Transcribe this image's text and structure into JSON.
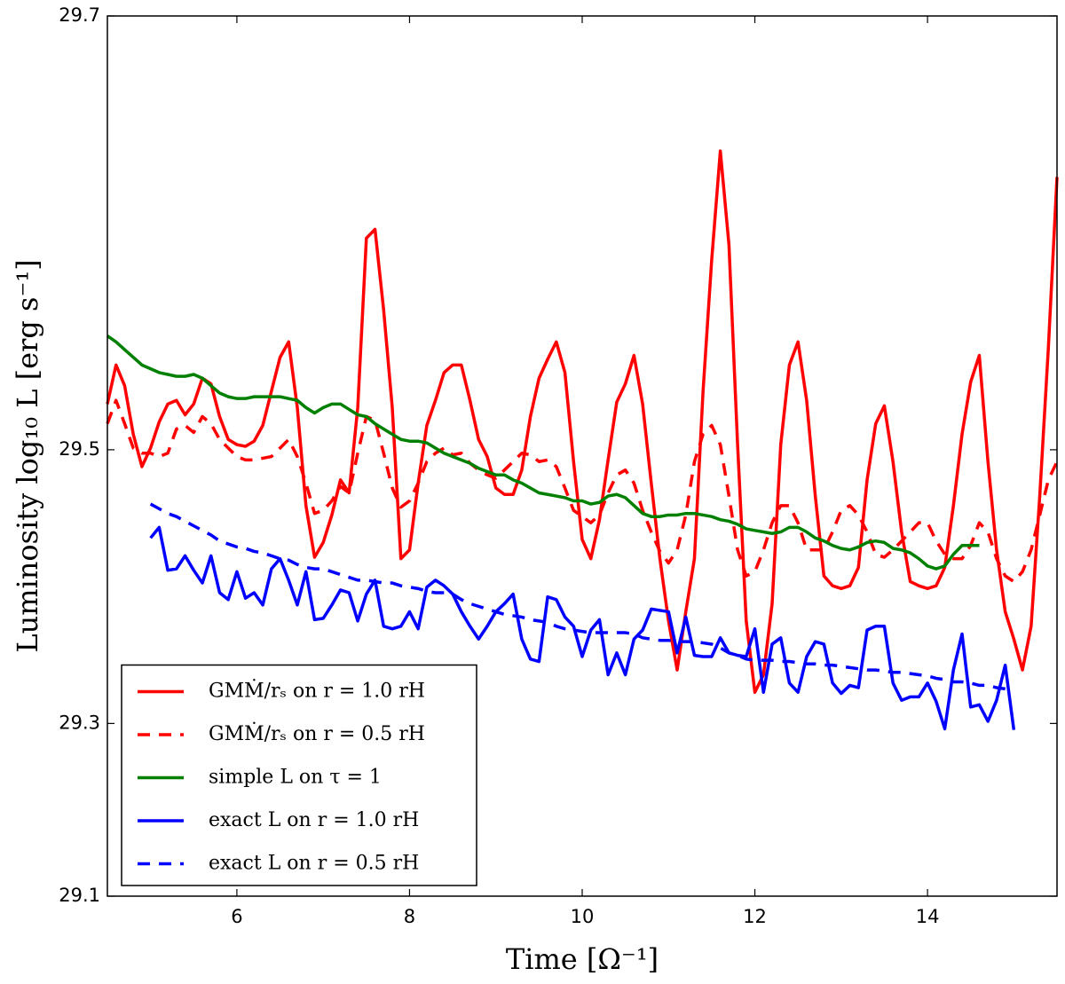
{
  "chart_data": {
    "type": "line",
    "xlabel": "Time [Ω⁻¹]",
    "ylabel": "Luminosity log₁₀ L [erg s⁻¹]",
    "xlim": [
      4.5,
      15.5
    ],
    "ylim": [
      29.1,
      29.7
    ],
    "xticks": [
      6,
      8,
      10,
      12,
      14
    ],
    "yticks": [
      29.1,
      29.3,
      29.5,
      29.7
    ],
    "yscale": "pow10",
    "grid": false,
    "legend": "lower left",
    "x": [
      4.5,
      4.6,
      4.7,
      4.8,
      4.9,
      5.0,
      5.1,
      5.2,
      5.3,
      5.4,
      5.5,
      5.6,
      5.7,
      5.8,
      5.9,
      6.0,
      6.1,
      6.2,
      6.3,
      6.4,
      6.5,
      6.6,
      6.7,
      6.8,
      6.9,
      7.0,
      7.1,
      7.2,
      7.3,
      7.4,
      7.5,
      7.6,
      7.7,
      7.8,
      7.9,
      8.0,
      8.1,
      8.2,
      8.3,
      8.4,
      8.5,
      8.6,
      8.7,
      8.8,
      8.9,
      9.0,
      9.1,
      9.2,
      9.3,
      9.4,
      9.5,
      9.6,
      9.7,
      9.8,
      9.9,
      10.0,
      10.1,
      10.2,
      10.3,
      10.4,
      10.5,
      10.6,
      10.7,
      10.8,
      10.9,
      11.0,
      11.1,
      11.2,
      11.3,
      11.4,
      11.5,
      11.6,
      11.7,
      11.8,
      11.9,
      12.0,
      12.1,
      12.2,
      12.3,
      12.4,
      12.5,
      12.6,
      12.7,
      12.8,
      12.9,
      13.0,
      13.1,
      13.2,
      13.3,
      13.4,
      13.5,
      13.6,
      13.7,
      13.8,
      13.9,
      14.0,
      14.1,
      14.2,
      14.3,
      14.4,
      14.5,
      14.6,
      14.7,
      14.8,
      14.9,
      15.0,
      15.1,
      15.2,
      15.3,
      15.4,
      15.5
    ],
    "series": [
      {
        "name": "GMṀ/rₛ on r = 1.0 rH",
        "color": "#ff0000",
        "linestyle": "solid",
        "values": [
          29.526,
          29.547,
          29.536,
          29.509,
          29.49,
          29.501,
          29.516,
          29.526,
          29.528,
          29.52,
          29.526,
          29.54,
          29.537,
          29.519,
          29.506,
          29.503,
          29.502,
          29.505,
          29.514,
          29.533,
          29.551,
          29.559,
          29.524,
          29.466,
          29.432,
          29.442,
          29.46,
          29.482,
          29.474,
          29.524,
          29.609,
          29.613,
          29.575,
          29.524,
          29.431,
          29.437,
          29.48,
          29.514,
          29.528,
          29.543,
          29.547,
          29.547,
          29.528,
          29.506,
          29.496,
          29.477,
          29.473,
          29.473,
          29.488,
          29.519,
          29.54,
          29.55,
          29.559,
          29.543,
          29.493,
          29.444,
          29.431,
          29.457,
          29.494,
          29.527,
          29.537,
          29.552,
          29.526,
          29.48,
          29.431,
          29.386,
          29.347,
          29.393,
          29.431,
          29.533,
          29.599,
          29.647,
          29.606,
          29.503,
          29.386,
          29.328,
          29.343,
          29.399,
          29.503,
          29.547,
          29.559,
          29.528,
          29.472,
          29.419,
          29.412,
          29.41,
          29.412,
          29.425,
          29.482,
          29.515,
          29.525,
          29.493,
          29.449,
          29.415,
          29.412,
          29.41,
          29.412,
          29.425,
          29.466,
          29.509,
          29.538,
          29.552,
          29.493,
          29.437,
          29.393,
          29.372,
          29.347,
          29.382,
          29.472,
          29.556,
          29.636
        ]
      },
      {
        "name": "GMṀ/rₛ on r = 0.5 rH",
        "color": "#ff0000",
        "linestyle": "dashed",
        "values": [
          29.515,
          29.528,
          29.515,
          29.501,
          29.498,
          29.498,
          29.496,
          29.498,
          29.512,
          29.514,
          29.51,
          29.519,
          29.515,
          29.506,
          29.501,
          29.496,
          29.494,
          29.494,
          29.495,
          29.496,
          29.501,
          29.506,
          29.496,
          29.48,
          29.461,
          29.463,
          29.469,
          29.478,
          29.474,
          29.498,
          29.519,
          29.517,
          29.498,
          29.477,
          29.465,
          29.469,
          29.48,
          29.493,
          29.498,
          29.501,
          29.497,
          29.498,
          29.492,
          29.488,
          29.485,
          29.483,
          29.488,
          29.493,
          29.498,
          29.497,
          29.493,
          29.494,
          29.49,
          29.477,
          29.463,
          29.459,
          29.455,
          29.46,
          29.474,
          29.485,
          29.488,
          29.48,
          29.463,
          29.449,
          29.436,
          29.428,
          29.437,
          29.46,
          29.493,
          29.509,
          29.514,
          29.503,
          29.472,
          29.437,
          29.419,
          29.422,
          29.437,
          29.455,
          29.466,
          29.466,
          29.455,
          29.437,
          29.437,
          29.437,
          29.449,
          29.463,
          29.466,
          29.46,
          29.449,
          29.434,
          29.432,
          29.437,
          29.443,
          29.449,
          29.455,
          29.455,
          29.443,
          29.434,
          29.431,
          29.431,
          29.44,
          29.455,
          29.449,
          29.431,
          29.419,
          29.415,
          29.422,
          29.437,
          29.46,
          29.482,
          29.493
        ]
      },
      {
        "name": "simple L on τ = 1",
        "color": "#008000",
        "linestyle": "solid",
        "values": [
          29.562,
          29.559,
          29.555,
          29.551,
          29.547,
          29.545,
          29.543,
          29.542,
          29.541,
          29.541,
          29.542,
          29.54,
          29.536,
          29.532,
          29.53,
          29.529,
          29.529,
          29.53,
          29.53,
          29.53,
          29.53,
          29.529,
          29.528,
          29.524,
          29.521,
          29.524,
          29.526,
          29.526,
          29.523,
          29.52,
          29.519,
          29.515,
          29.512,
          29.509,
          29.506,
          29.505,
          29.505,
          29.504,
          29.501,
          29.498,
          29.496,
          29.494,
          29.492,
          29.489,
          29.487,
          29.485,
          29.485,
          29.482,
          29.48,
          29.477,
          29.474,
          29.473,
          29.472,
          29.471,
          29.469,
          29.469,
          29.467,
          29.468,
          29.472,
          29.473,
          29.471,
          29.466,
          29.461,
          29.459,
          29.459,
          29.46,
          29.46,
          29.461,
          29.461,
          29.46,
          29.459,
          29.457,
          29.456,
          29.454,
          29.451,
          29.45,
          29.449,
          29.448,
          29.449,
          29.452,
          29.452,
          29.449,
          29.445,
          29.443,
          29.44,
          29.438,
          29.437,
          29.439,
          29.442,
          29.443,
          29.442,
          29.438,
          29.437,
          29.435,
          29.431,
          29.426,
          29.424,
          29.426,
          29.434,
          29.44,
          29.44,
          29.44,
          null,
          null,
          null,
          null,
          null,
          null,
          null,
          null,
          null
        ]
      },
      {
        "name": "exact L on r = 1.0 rH",
        "color": "#0000ff",
        "linestyle": "solid",
        "values": [
          null,
          null,
          null,
          null,
          null,
          29.445,
          29.452,
          29.423,
          29.424,
          29.433,
          29.423,
          29.414,
          29.433,
          29.407,
          29.402,
          29.422,
          29.403,
          29.407,
          29.398,
          29.424,
          29.431,
          29.416,
          29.398,
          29.422,
          29.387,
          29.388,
          29.398,
          29.409,
          29.407,
          29.386,
          29.406,
          29.416,
          29.382,
          29.38,
          29.382,
          29.393,
          29.38,
          29.411,
          29.416,
          29.412,
          29.406,
          29.393,
          29.382,
          29.372,
          29.382,
          29.393,
          29.399,
          29.406,
          29.372,
          29.356,
          29.354,
          29.404,
          29.402,
          29.389,
          29.382,
          29.358,
          29.379,
          29.387,
          29.343,
          29.361,
          29.343,
          29.372,
          29.379,
          29.395,
          29.394,
          29.393,
          29.361,
          29.389,
          29.359,
          29.358,
          29.358,
          29.373,
          29.361,
          29.359,
          29.358,
          29.38,
          29.328,
          29.368,
          29.373,
          29.336,
          29.328,
          29.358,
          29.37,
          29.368,
          29.336,
          29.327,
          29.334,
          29.332,
          29.379,
          29.382,
          29.382,
          29.336,
          29.321,
          29.324,
          29.324,
          29.336,
          29.32,
          29.295,
          29.347,
          29.376,
          29.315,
          29.317,
          29.302,
          29.321,
          29.351,
          29.294,
          null,
          null,
          null,
          null,
          null
        ]
      },
      {
        "name": "exact L on r = 0.5 rH",
        "color": "#0000ff",
        "linestyle": "dashed",
        "values": [
          null,
          null,
          null,
          null,
          null,
          29.467,
          29.464,
          29.461,
          29.459,
          29.456,
          29.453,
          29.45,
          29.447,
          29.443,
          29.441,
          29.439,
          29.438,
          29.436,
          29.435,
          29.433,
          29.431,
          29.43,
          29.427,
          29.425,
          29.424,
          29.424,
          29.422,
          29.42,
          29.418,
          29.416,
          29.416,
          29.415,
          29.414,
          29.414,
          29.412,
          29.411,
          29.41,
          29.408,
          29.407,
          29.407,
          29.406,
          29.402,
          29.399,
          29.397,
          29.395,
          29.393,
          29.391,
          29.39,
          29.389,
          29.387,
          29.386,
          29.385,
          29.382,
          29.38,
          29.379,
          29.378,
          29.377,
          29.377,
          29.377,
          29.377,
          29.377,
          29.376,
          29.373,
          29.372,
          29.371,
          29.371,
          29.37,
          29.37,
          29.37,
          29.369,
          29.368,
          29.365,
          29.361,
          29.359,
          29.356,
          29.355,
          29.355,
          29.355,
          29.354,
          29.354,
          29.353,
          29.352,
          29.352,
          29.351,
          29.351,
          29.35,
          29.349,
          29.348,
          29.347,
          29.347,
          29.346,
          29.345,
          29.345,
          29.344,
          29.343,
          29.342,
          29.34,
          29.339,
          29.337,
          29.337,
          29.336,
          29.334,
          29.334,
          29.332,
          29.331,
          29.329,
          null,
          null,
          null,
          null,
          null
        ]
      }
    ]
  }
}
